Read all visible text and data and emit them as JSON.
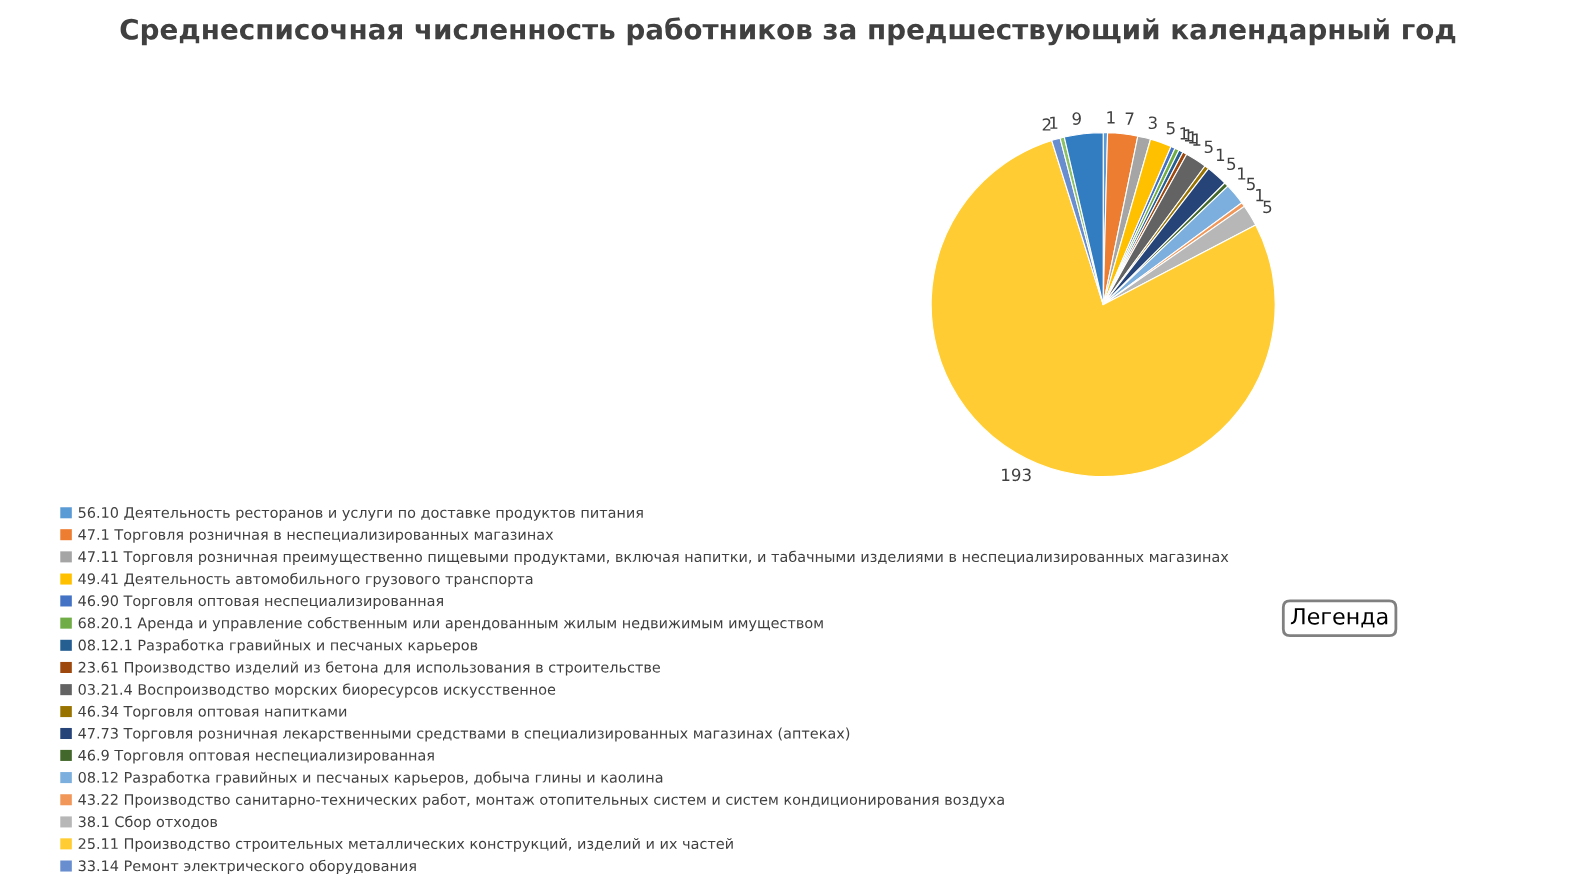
{
  "chart_data": {
    "type": "pie",
    "title": "Среднесписочная численность работников за предшествующий календарный год",
    "categories": [
      "56.10 Деятельность ресторанов и услуги по доставке продуктов питания",
      "47.1 Торговля розничная в неспециализированных магазинах",
      "47.11 Торговля розничная преимущественно пищевыми продуктами, включая напитки, и табачными изделиями в неспециализированных магазинах",
      "49.41 Деятельность автомобильного грузового транспорта",
      "46.90 Торговля оптовая неспециализированная",
      "68.20.1 Аренда и управление собственным или арендованным жилым недвижимым имуществом",
      "08.12.1 Разработка гравийных и песчаных карьеров",
      "23.61 Производство изделий из бетона для использования в строительстве",
      "03.21.4 Воспроизводство морских биоресурсов искусственное",
      "46.34 Торговля оптовая напитками",
      "47.73 Торговля розничная лекарственными средствами в специализированных магазинах (аптеках)",
      "46.9 Торговля оптовая неспециализированная",
      "08.12 Разработка гравийных и песчаных карьеров, добыча глины и каолина",
      "43.22 Производство санитарно-технических работ, монтаж отопительных систем и систем кондиционирования воздуха",
      "38.1 Сбор отходов",
      "25.11 Производство строительных металлических конструкций, изделий и их частей",
      "33.14 Ремонт электрического оборудования",
      null,
      null
    ],
    "values": [
      1,
      7,
      3,
      5,
      1,
      1,
      1,
      1,
      5,
      1,
      5,
      1,
      5,
      1,
      5,
      193,
      2,
      1,
      9
    ],
    "colors": [
      "#5b9bd5",
      "#ed7d31",
      "#a5a5a5",
      "#ffc000",
      "#4472c4",
      "#70ad47",
      "#255e91",
      "#9e480e",
      "#636363",
      "#997300",
      "#264478",
      "#43682b",
      "#7cafdd",
      "#f1975a",
      "#b7b7b7",
      "#ffcd33",
      "#698ed0",
      "#8cc168",
      "#327dc2"
    ],
    "data_labels": true,
    "legend": "left",
    "annotations": [
      "Легенда"
    ]
  }
}
